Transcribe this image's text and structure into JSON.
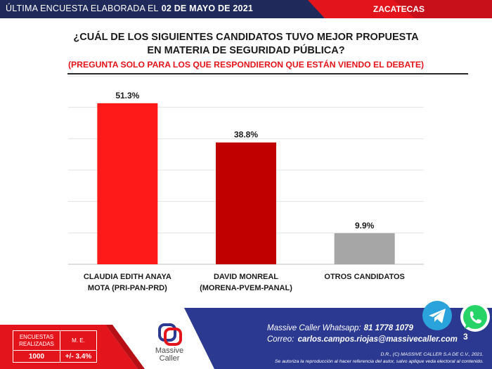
{
  "header": {
    "left_text": "ÚLTIMA ENCUESTA ELABORADA EL",
    "date": "02 DE MAYO DE 2021",
    "region": "ZACATECAS",
    "colors": {
      "dark_navy": "#1f2a5a",
      "red": "#e3141b"
    }
  },
  "title_line1": "¿CUÁL DE LOS SIGUIENTES CANDIDATOS TUVO MEJOR PROPUESTA",
  "title_line2": "EN MATERIA DE SEGURIDAD PÚBLICA?",
  "subtitle": "(PREGUNTA SOLO PARA LOS QUE RESPONDIERON QUE ESTÁN VIENDO EL DEBATE)",
  "chart_data": {
    "type": "bar",
    "title": "¿CUÁL DE LOS SIGUIENTES CANDIDATOS TUVO MEJOR PROPUESTA EN MATERIA DE SEGURIDAD PÚBLICA?",
    "subtitle": "(PREGUNTA SOLO PARA LOS QUE RESPONDIERON QUE ESTÁN VIENDO EL DEBATE)",
    "categories": [
      [
        "CLAUDIA EDITH ANAYA",
        "MOTA (PRI-PAN-PRD)"
      ],
      [
        "DAVID MONREAL",
        "(MORENA-PVEM-PANAL)"
      ],
      [
        "OTROS CANDIDATOS"
      ]
    ],
    "values": [
      51.3,
      38.8,
      9.9
    ],
    "value_labels": [
      "51.3%",
      "38.8%",
      "9.9%"
    ],
    "colors": [
      "#ff1a1a",
      "#c00000",
      "#a6a6a6"
    ],
    "ylim": [
      0,
      60
    ],
    "gridlines": true,
    "xlabel": "",
    "ylabel": ""
  },
  "footer": {
    "stats": {
      "col1_header": [
        "ENCUESTAS",
        "REALIZADAS"
      ],
      "col2_header": "M. E.",
      "col1_value": "1000",
      "col2_value": "+/- 3.4%"
    },
    "logo_name_line1": "Massive",
    "logo_name_line2": "Caller",
    "contact_line1": "Massive Caller Whatsapp:",
    "contact_number": "81 1778 1079",
    "contact_line2": "Correo:",
    "contact_email": "carlos.campos.riojas@massivecaller.com",
    "legal_line1": "D.R., (C) MASSIVE CALLER S.A DE C.V., 2021.",
    "legal_line2": "Se autoriza la reproducción al hacer referencia del autor, salvo aplique veda electoral al contenido.",
    "page_number": "3",
    "icons": [
      "telegram-icon",
      "whatsapp-icon"
    ],
    "colors": {
      "navy": "#2b3990",
      "red": "#e3141b",
      "telegram": "#2aa3dc",
      "whatsapp": "#25d366"
    }
  }
}
